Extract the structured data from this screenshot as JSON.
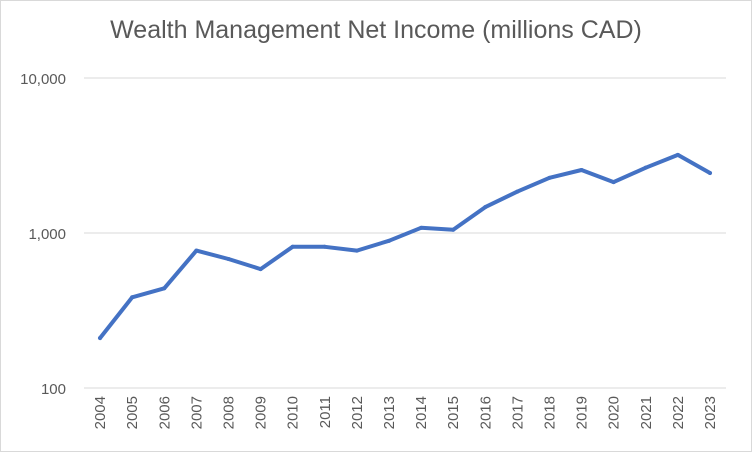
{
  "chart_data": {
    "type": "line",
    "title": "Wealth Management Net Income (millions CAD)",
    "xlabel": "",
    "ylabel": "",
    "y_scale": "log",
    "ylim": [
      100,
      10000
    ],
    "y_ticks": [
      100,
      1000,
      10000
    ],
    "y_tick_labels": [
      "100",
      "1,000",
      "10,000"
    ],
    "grid": true,
    "legend": "none",
    "categories": [
      "2004",
      "2005",
      "2006",
      "2007",
      "2008",
      "2009",
      "2010",
      "2011",
      "2012",
      "2013",
      "2014",
      "2015",
      "2016",
      "2017",
      "2018",
      "2019",
      "2020",
      "2021",
      "2022",
      "2023"
    ],
    "series": [
      {
        "values": [
          210,
          385,
          440,
          770,
          680,
          585,
          815,
          815,
          770,
          890,
          1080,
          1050,
          1470,
          1850,
          2270,
          2550,
          2130,
          2640,
          3190,
          2440
        ],
        "color": "#4472c4"
      }
    ]
  }
}
